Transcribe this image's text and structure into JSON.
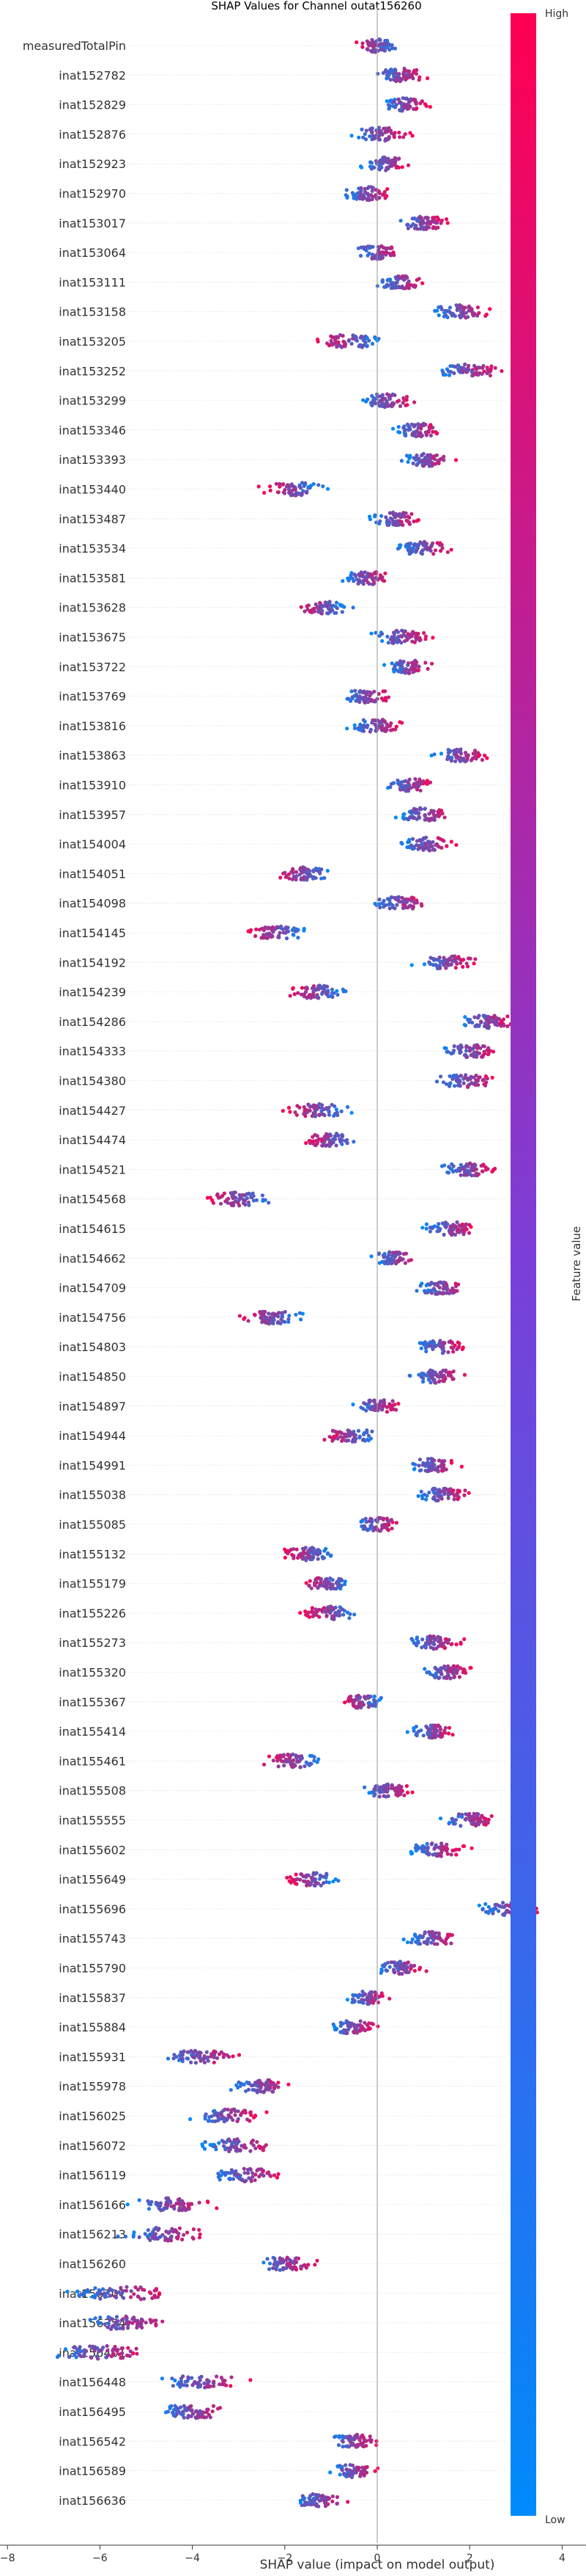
{
  "chart_data": {
    "type": "scatter",
    "subtype": "shap_beeswarm",
    "title": "SHAP Values for Channel outat156260",
    "xlabel": "SHAP value (impact on model output)",
    "xticks": [
      -8,
      -6,
      -4,
      -2,
      0,
      2,
      4
    ],
    "xlim": [
      -9.2,
      5.3
    ],
    "colorbar": {
      "label": "Feature value",
      "high_label": "High",
      "low_label": "Low",
      "low_color": "#008afb",
      "high_color": "#ff0052"
    },
    "features": [
      {
        "name": "measuredTotalPin",
        "center": 0.0,
        "spread": 0.7,
        "dir": -1
      },
      {
        "name": "inat152782",
        "center": 0.5,
        "spread": 0.9,
        "dir": 1
      },
      {
        "name": "inat152829",
        "center": 0.6,
        "spread": 0.8,
        "dir": 1
      },
      {
        "name": "inat152876",
        "center": 0.1,
        "spread": 0.9,
        "dir": 1
      },
      {
        "name": "inat152923",
        "center": 0.2,
        "spread": 0.8,
        "dir": 1
      },
      {
        "name": "inat152970",
        "center": -0.2,
        "spread": 0.8,
        "dir": 1
      },
      {
        "name": "inat153017",
        "center": 1.0,
        "spread": 0.9,
        "dir": 1
      },
      {
        "name": "inat153064",
        "center": 0.0,
        "spread": 0.8,
        "dir": 1
      },
      {
        "name": "inat153111",
        "center": 0.5,
        "spread": 0.8,
        "dir": 1
      },
      {
        "name": "inat153158",
        "center": 1.8,
        "spread": 1.0,
        "dir": 1
      },
      {
        "name": "inat153205",
        "center": -0.6,
        "spread": 1.0,
        "dir": -1
      },
      {
        "name": "inat153252",
        "center": 2.0,
        "spread": 1.1,
        "dir": 1
      },
      {
        "name": "inat153299",
        "center": 0.2,
        "spread": 0.9,
        "dir": 1
      },
      {
        "name": "inat153346",
        "center": 0.9,
        "spread": 0.8,
        "dir": 1
      },
      {
        "name": "inat153393",
        "center": 1.1,
        "spread": 0.8,
        "dir": 1
      },
      {
        "name": "inat153440",
        "center": -1.8,
        "spread": 1.0,
        "dir": -1
      },
      {
        "name": "inat153487",
        "center": 0.4,
        "spread": 0.9,
        "dir": 1
      },
      {
        "name": "inat153534",
        "center": 1.0,
        "spread": 0.9,
        "dir": 1
      },
      {
        "name": "inat153581",
        "center": -0.2,
        "spread": 0.8,
        "dir": 1
      },
      {
        "name": "inat153628",
        "center": -1.2,
        "spread": 0.9,
        "dir": -1
      },
      {
        "name": "inat153675",
        "center": 0.5,
        "spread": 0.9,
        "dir": 1
      },
      {
        "name": "inat153722",
        "center": 0.7,
        "spread": 0.8,
        "dir": 1
      },
      {
        "name": "inat153769",
        "center": -0.2,
        "spread": 0.8,
        "dir": 1
      },
      {
        "name": "inat153816",
        "center": 0.0,
        "spread": 0.9,
        "dir": 1
      },
      {
        "name": "inat153863",
        "center": 1.8,
        "spread": 0.9,
        "dir": 1
      },
      {
        "name": "inat153910",
        "center": 0.7,
        "spread": 0.8,
        "dir": 1
      },
      {
        "name": "inat153957",
        "center": 1.0,
        "spread": 0.9,
        "dir": 1
      },
      {
        "name": "inat154004",
        "center": 1.1,
        "spread": 0.9,
        "dir": 1
      },
      {
        "name": "inat154051",
        "center": -1.6,
        "spread": 0.9,
        "dir": -1
      },
      {
        "name": "inat154098",
        "center": 0.5,
        "spread": 0.9,
        "dir": 1
      },
      {
        "name": "inat154145",
        "center": -2.2,
        "spread": 1.0,
        "dir": -1
      },
      {
        "name": "inat154192",
        "center": 1.5,
        "spread": 0.9,
        "dir": 1
      },
      {
        "name": "inat154239",
        "center": -1.3,
        "spread": 0.9,
        "dir": -1
      },
      {
        "name": "inat154286",
        "center": 2.4,
        "spread": 1.0,
        "dir": 1
      },
      {
        "name": "inat154333",
        "center": 2.0,
        "spread": 1.0,
        "dir": 1
      },
      {
        "name": "inat154380",
        "center": 1.9,
        "spread": 1.0,
        "dir": 1
      },
      {
        "name": "inat154427",
        "center": -1.3,
        "spread": 1.0,
        "dir": -1
      },
      {
        "name": "inat154474",
        "center": -1.0,
        "spread": 0.9,
        "dir": -1
      },
      {
        "name": "inat154521",
        "center": 2.0,
        "spread": 1.0,
        "dir": 1
      },
      {
        "name": "inat154568",
        "center": -3.0,
        "spread": 1.2,
        "dir": -1
      },
      {
        "name": "inat154615",
        "center": 1.6,
        "spread": 0.9,
        "dir": 1
      },
      {
        "name": "inat154662",
        "center": 0.4,
        "spread": 0.8,
        "dir": 1
      },
      {
        "name": "inat154709",
        "center": 1.4,
        "spread": 0.9,
        "dir": 1
      },
      {
        "name": "inat154756",
        "center": -2.3,
        "spread": 1.1,
        "dir": -1
      },
      {
        "name": "inat154803",
        "center": 1.4,
        "spread": 0.8,
        "dir": 1
      },
      {
        "name": "inat154850",
        "center": 1.3,
        "spread": 0.9,
        "dir": 1
      },
      {
        "name": "inat154897",
        "center": 0.0,
        "spread": 0.8,
        "dir": 1
      },
      {
        "name": "inat154944",
        "center": -0.6,
        "spread": 0.9,
        "dir": -1
      },
      {
        "name": "inat154991",
        "center": 1.2,
        "spread": 0.8,
        "dir": 1
      },
      {
        "name": "inat155038",
        "center": 1.4,
        "spread": 0.9,
        "dir": 1
      },
      {
        "name": "inat155085",
        "center": 0.0,
        "spread": 0.8,
        "dir": 1
      },
      {
        "name": "inat155132",
        "center": -1.5,
        "spread": 0.9,
        "dir": -1
      },
      {
        "name": "inat155179",
        "center": -1.1,
        "spread": 0.9,
        "dir": -1
      },
      {
        "name": "inat155226",
        "center": -1.0,
        "spread": 0.9,
        "dir": -1
      },
      {
        "name": "inat155273",
        "center": 1.2,
        "spread": 0.9,
        "dir": 1
      },
      {
        "name": "inat155320",
        "center": 1.5,
        "spread": 0.9,
        "dir": 1
      },
      {
        "name": "inat155367",
        "center": -0.3,
        "spread": 0.7,
        "dir": -1
      },
      {
        "name": "inat155414",
        "center": 1.2,
        "spread": 0.8,
        "dir": 1
      },
      {
        "name": "inat155461",
        "center": -1.8,
        "spread": 1.0,
        "dir": -1
      },
      {
        "name": "inat155508",
        "center": 0.2,
        "spread": 0.8,
        "dir": 1
      },
      {
        "name": "inat155555",
        "center": 2.0,
        "spread": 1.0,
        "dir": 1
      },
      {
        "name": "inat155602",
        "center": 1.3,
        "spread": 0.9,
        "dir": 1
      },
      {
        "name": "inat155649",
        "center": -1.4,
        "spread": 0.9,
        "dir": -1
      },
      {
        "name": "inat155696",
        "center": 2.8,
        "spread": 0.9,
        "dir": 1
      },
      {
        "name": "inat155743",
        "center": 1.2,
        "spread": 0.9,
        "dir": 1
      },
      {
        "name": "inat155790",
        "center": 0.5,
        "spread": 0.9,
        "dir": 1
      },
      {
        "name": "inat155837",
        "center": -0.2,
        "spread": 0.7,
        "dir": 1
      },
      {
        "name": "inat155884",
        "center": -0.5,
        "spread": 0.8,
        "dir": 1
      },
      {
        "name": "inat155931",
        "center": -3.8,
        "spread": 1.3,
        "dir": 1
      },
      {
        "name": "inat155978",
        "center": -2.5,
        "spread": 1.1,
        "dir": 1
      },
      {
        "name": "inat156025",
        "center": -3.2,
        "spread": 1.2,
        "dir": 1
      },
      {
        "name": "inat156072",
        "center": -3.0,
        "spread": 1.2,
        "dir": 1
      },
      {
        "name": "inat156119",
        "center": -2.8,
        "spread": 1.2,
        "dir": 1
      },
      {
        "name": "inat156166",
        "center": -4.5,
        "spread": 1.5,
        "dir": 1
      },
      {
        "name": "inat156213",
        "center": -4.6,
        "spread": 1.4,
        "dir": 1
      },
      {
        "name": "inat156260",
        "center": -2.0,
        "spread": 1.0,
        "dir": 1
      },
      {
        "name": "inat156307",
        "center": -5.5,
        "spread": 1.6,
        "dir": 1
      },
      {
        "name": "inat156354",
        "center": -5.5,
        "spread": 1.4,
        "dir": 1
      },
      {
        "name": "inat156401",
        "center": -6.0,
        "spread": 1.8,
        "dir": 1
      },
      {
        "name": "inat156448",
        "center": -3.8,
        "spread": 1.4,
        "dir": 1
      },
      {
        "name": "inat156495",
        "center": -4.0,
        "spread": 1.3,
        "dir": 1
      },
      {
        "name": "inat156542",
        "center": -0.5,
        "spread": 0.8,
        "dir": 1
      },
      {
        "name": "inat156589",
        "center": -0.5,
        "spread": 0.7,
        "dir": 1
      },
      {
        "name": "inat156636",
        "center": -1.2,
        "spread": 1.0,
        "dir": 1
      }
    ]
  }
}
